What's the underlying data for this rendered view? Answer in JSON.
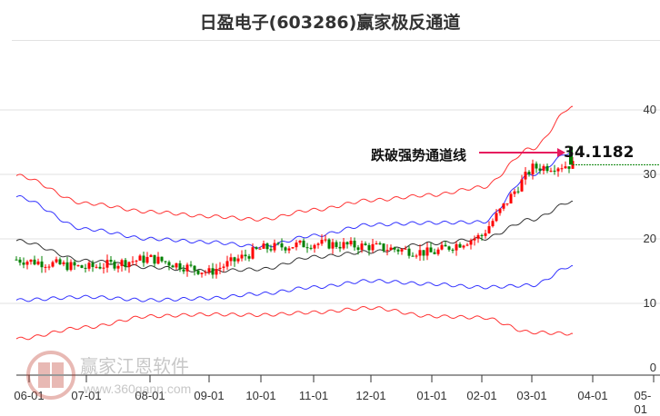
{
  "title": "日盈电子(603286)赢家极反通道",
  "annotation": {
    "label": "跌破强势通道线",
    "value": "34.1182"
  },
  "watermark": {
    "name": "赢家江恩软件",
    "url": "www.360gann.com",
    "logo_chars": [
      "江",
      "赢",
      "恩",
      "家"
    ]
  },
  "colors": {
    "up": "#ff0000",
    "down": "#008000",
    "outer_band": "#ff0000",
    "inner_band": "#0000ff",
    "mid_line": "#000000",
    "arrow": "#e6195e",
    "support_line": "#008000",
    "grid": "#e2e2e2"
  },
  "chart_data": {
    "type": "candlestick",
    "title": "日盈电子(603286)赢家极反通道",
    "xlabel": "",
    "ylabel": "",
    "ylim": [
      0,
      40
    ],
    "y_ticks": [
      0,
      10,
      20,
      30,
      40
    ],
    "x_ticks": [
      "06-01",
      "07-01",
      "08-01",
      "09-01",
      "10-01",
      "11-01",
      "12-01",
      "01-01",
      "02-01",
      "03-01",
      "04-01",
      "05-01"
    ],
    "grid": "horizontal",
    "annotation": {
      "text": "跌破强势通道线",
      "value": 34.1182
    },
    "series": [
      {
        "name": "outer_upper",
        "color": "#ff0000",
        "x": [
          "06-01",
          "07-01",
          "08-01",
          "09-01",
          "10-01",
          "11-01",
          "12-01",
          "01-01",
          "02-01",
          "03-01",
          "03-20"
        ],
        "values": [
          29.8,
          25.5,
          24.2,
          23.5,
          23.0,
          24.5,
          26.0,
          26.8,
          28.0,
          34.0,
          40.5
        ]
      },
      {
        "name": "inner_upper",
        "color": "#0000ff",
        "x": [
          "06-01",
          "07-01",
          "08-01",
          "09-01",
          "10-01",
          "11-01",
          "12-01",
          "01-01",
          "02-01",
          "03-01",
          "03-20"
        ],
        "values": [
          26.5,
          21.5,
          20.0,
          19.5,
          18.8,
          20.5,
          22.2,
          22.5,
          22.6,
          30.0,
          33.5
        ]
      },
      {
        "name": "mid",
        "color": "#000000",
        "x": [
          "06-01",
          "07-01",
          "08-01",
          "09-01",
          "10-01",
          "11-01",
          "12-01",
          "01-01",
          "02-01",
          "03-01",
          "03-20"
        ],
        "values": [
          19.7,
          16.6,
          15.6,
          15.0,
          15.3,
          17.2,
          18.0,
          19.3,
          20.0,
          23.0,
          25.8
        ]
      },
      {
        "name": "inner_lower",
        "color": "#0000ff",
        "x": [
          "06-01",
          "07-01",
          "08-01",
          "09-01",
          "10-01",
          "11-01",
          "12-01",
          "01-01",
          "02-01",
          "03-01",
          "03-20"
        ],
        "values": [
          10.5,
          11.0,
          10.5,
          10.8,
          11.5,
          12.5,
          13.5,
          13.0,
          12.5,
          12.8,
          15.8
        ]
      },
      {
        "name": "outer_lower",
        "color": "#ff0000",
        "x": [
          "06-01",
          "07-01",
          "08-01",
          "09-01",
          "10-01",
          "11-01",
          "12-01",
          "01-01",
          "02-01",
          "03-01",
          "03-20"
        ],
        "values": [
          4.5,
          6.3,
          8.0,
          8.3,
          8.2,
          8.6,
          9.3,
          8.0,
          7.8,
          5.5,
          5.3
        ]
      },
      {
        "name": "price_close",
        "color": "#000000",
        "x": [
          "06-01",
          "07-01",
          "08-01",
          "09-01",
          "10-01",
          "11-01",
          "12-01",
          "01-01",
          "02-01",
          "03-01",
          "03-20"
        ],
        "values": [
          16.8,
          15.5,
          17.0,
          14.8,
          18.5,
          19.3,
          18.8,
          17.8,
          20.5,
          31.0,
          31.5
        ]
      }
    ]
  }
}
